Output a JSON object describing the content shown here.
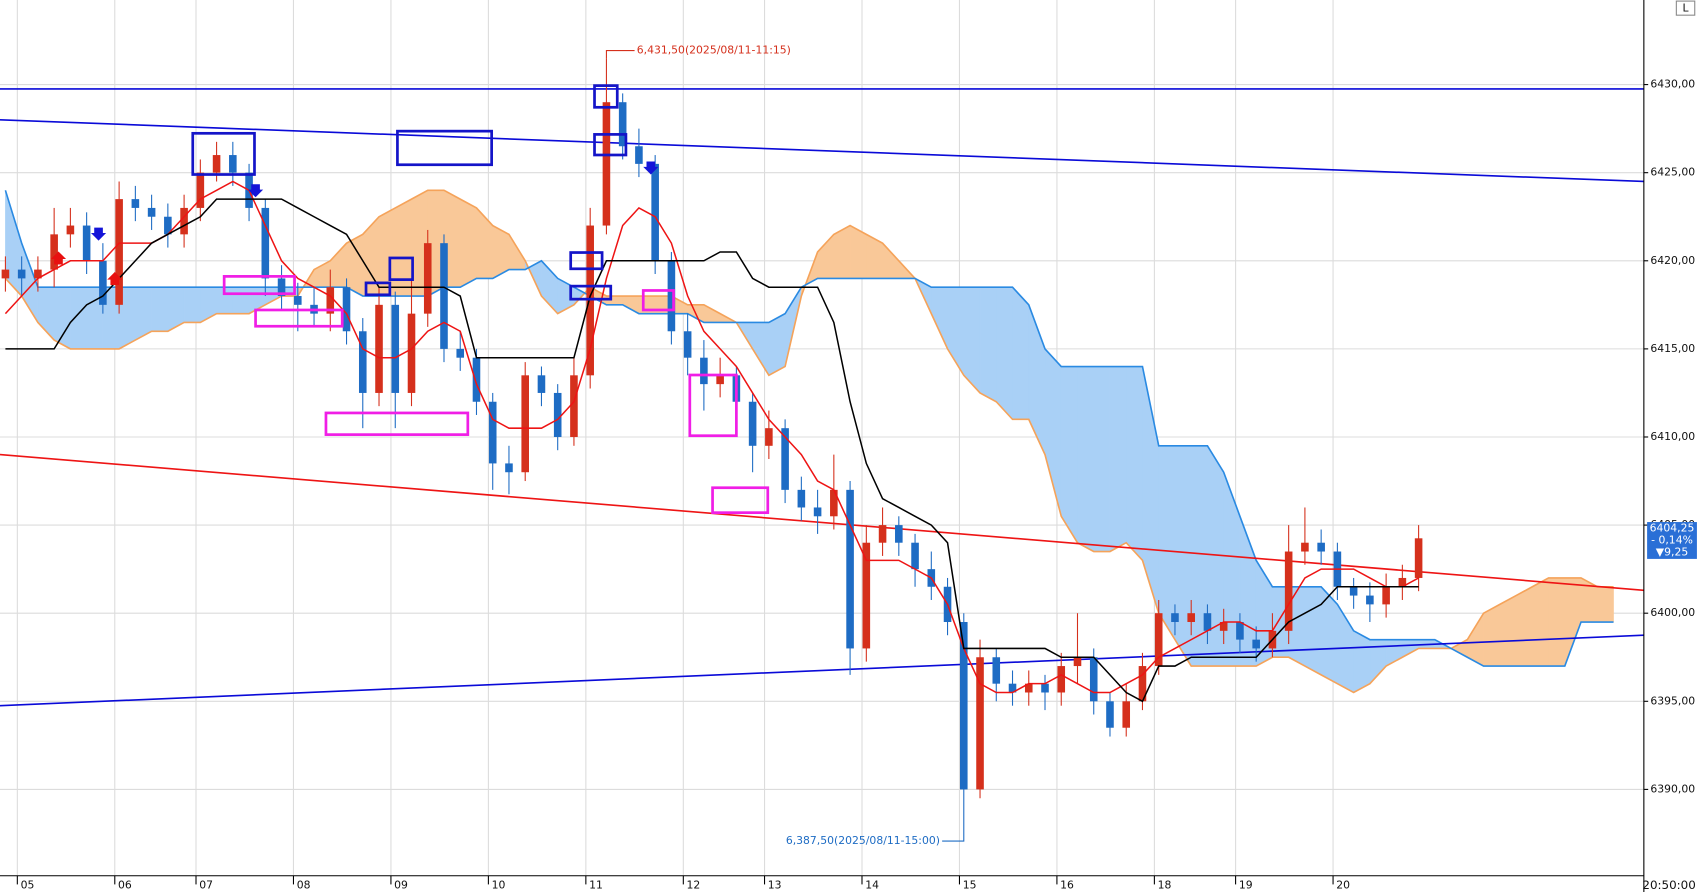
{
  "chart_data": {
    "type": "candlestick",
    "categories": [
      null,
      "05",
      null,
      null,
      null,
      null,
      null,
      "06",
      null,
      null,
      null,
      null,
      "07",
      null,
      null,
      null,
      null,
      null,
      "08",
      null,
      null,
      null,
      null,
      null,
      "09",
      null,
      null,
      null,
      null,
      null,
      "10",
      null,
      null,
      null,
      null,
      null,
      "11",
      null,
      null,
      null,
      null,
      null,
      "12",
      null,
      null,
      null,
      null,
      "13",
      null,
      null,
      null,
      null,
      null,
      "14",
      null,
      null,
      null,
      null,
      null,
      "15",
      null,
      null,
      null,
      null,
      null,
      "16",
      null,
      null,
      null,
      null,
      null,
      "18",
      null,
      null,
      null,
      null,
      "19",
      null,
      null,
      null,
      null,
      null,
      "20",
      null,
      null,
      null,
      null,
      null,
      null,
      null,
      null,
      null,
      null,
      null,
      null,
      null,
      null,
      null,
      null,
      null
    ],
    "candles": {
      "up_color": "#d5301c",
      "down_color": "#1e6cc4",
      "open": [
        6419,
        6419.5,
        6419,
        6419.5,
        6421.5,
        6422,
        6420,
        6417.5,
        6423.5,
        6423,
        6422.5,
        6421.5,
        6423,
        6425,
        6426,
        6425,
        6423,
        6419,
        6418,
        6417.5,
        6417,
        6418.5,
        6416,
        6412.5,
        6417.5,
        6412.5,
        6417,
        6421,
        6415,
        6414.5,
        6412,
        6408.5,
        6408,
        6413.5,
        6412.5,
        6410,
        6413.5,
        6422,
        6429,
        6426.5,
        6425.5,
        6420,
        6416,
        6414.5,
        6413,
        6413.5,
        6412,
        6409.5,
        6410.5,
        6407,
        6406,
        6405.5,
        6407,
        6398,
        6404,
        6405,
        6404,
        6402.5,
        6401.5,
        6399.5,
        6390,
        6397.5,
        6396,
        6395.5,
        6396,
        6395.5,
        6397,
        6397.5,
        6395,
        6393.5,
        6395,
        6397,
        6400,
        6399.5,
        6400,
        6399,
        6399.5,
        6398.5,
        6398,
        6399,
        6403.5,
        6404,
        6403.5,
        6401.5,
        6401,
        6400.5,
        6401.5,
        6402,
        null,
        null,
        null,
        null,
        null,
        null,
        null,
        null,
        null,
        null,
        null,
        null
      ],
      "high": [
        6420.25,
        6420.25,
        6420.25,
        6423,
        6423,
        6422.75,
        6421,
        6424.5,
        6424.25,
        6423.75,
        6423.25,
        6423.75,
        6425.75,
        6426.75,
        6426.75,
        6425.5,
        6423.5,
        6419.75,
        6418.75,
        6418.5,
        6419.5,
        6419,
        6416.75,
        6418.5,
        6418.25,
        6419,
        6421.75,
        6421.5,
        6416,
        6415,
        6412.5,
        6409.5,
        6414.25,
        6414,
        6413,
        6414.5,
        6423,
        6431.5,
        6429.5,
        6427.5,
        6426,
        6420.5,
        6417,
        6415.5,
        6414.5,
        6414,
        6412.5,
        6411.5,
        6411,
        6407.75,
        6407,
        6409,
        6407.5,
        6405,
        6406,
        6405.5,
        6404.5,
        6403.5,
        6402,
        6400,
        6398.5,
        6398,
        6396.75,
        6396.75,
        6396.5,
        6397.75,
        6400,
        6398,
        6395.5,
        6396,
        6397.75,
        6400.75,
        6400.5,
        6400.75,
        6400.5,
        6400.25,
        6400,
        6399.25,
        6400,
        6405,
        6406,
        6404.75,
        6404,
        6402,
        6401.75,
        6402.25,
        6402.75,
        6405,
        null,
        null,
        null,
        null,
        null,
        null,
        null,
        null,
        null,
        null,
        null,
        null
      ],
      "low": [
        6418.25,
        6418,
        6418.25,
        6418.5,
        6420.75,
        6419.25,
        6417,
        6417,
        6422.25,
        6421.75,
        6420.75,
        6420.75,
        6422.25,
        6424.5,
        6424.25,
        6422.25,
        6418,
        6417.25,
        6416,
        6416.25,
        6416,
        6415.25,
        6410.5,
        6411.75,
        6410.5,
        6411.75,
        6416.25,
        6414.25,
        6413.75,
        6411.25,
        6407,
        6406.75,
        6407.5,
        6411.75,
        6409.25,
        6409.5,
        6412.75,
        6421.5,
        6425.75,
        6424.75,
        6419.25,
        6415.25,
        6413.5,
        6411.5,
        6412.25,
        6411.25,
        6408,
        6408.75,
        6406.25,
        6405.25,
        6404.5,
        6404.75,
        6396.5,
        6397.25,
        6403.25,
        6403.25,
        6401.5,
        6400.75,
        6398.75,
        6387.5,
        6389.5,
        6395,
        6394.75,
        6394.75,
        6394.5,
        6394.75,
        6396,
        6394.25,
        6393,
        6393,
        6394.5,
        6396.5,
        6398.75,
        6398.75,
        6398.25,
        6398.25,
        6397.75,
        6397.25,
        6397.5,
        6398.25,
        6402.75,
        6402.75,
        6400.75,
        6400.25,
        6399.5,
        6399.75,
        6400.75,
        6401.25,
        null,
        null,
        null,
        null,
        null,
        null,
        null,
        null,
        null,
        null,
        null,
        null
      ],
      "close": [
        6419.5,
        6419,
        6419.5,
        6421.5,
        6422,
        6420,
        6417.5,
        6423.5,
        6423,
        6422.5,
        6421.5,
        6423,
        6425,
        6426,
        6425,
        6423,
        6419,
        6418,
        6417.5,
        6417,
        6418.5,
        6416,
        6412.5,
        6417.5,
        6412.5,
        6417,
        6421,
        6415,
        6414.5,
        6412,
        6408.5,
        6408,
        6413.5,
        6412.5,
        6410,
        6413.5,
        6422,
        6429,
        6426.5,
        6425.5,
        6420,
        6416,
        6414.5,
        6413,
        6413.5,
        6412,
        6409.5,
        6410.5,
        6407,
        6406,
        6405.5,
        6407,
        6398,
        6404,
        6405,
        6404,
        6402.5,
        6401.5,
        6399.5,
        6390,
        6397.5,
        6396,
        6395.5,
        6396,
        6395.5,
        6397,
        6397.5,
        6395,
        6393.5,
        6395,
        6397,
        6400,
        6399.5,
        6400,
        6399,
        6399.5,
        6398.5,
        6398,
        6399,
        6403.5,
        6404,
        6403.5,
        6401.5,
        6401,
        6400.5,
        6401.5,
        6402,
        6404.25,
        null,
        null,
        null,
        null,
        null,
        null,
        null,
        null,
        null,
        null,
        null,
        null
      ]
    },
    "series": [
      {
        "color": "#ee1414",
        "values": [
          6417,
          6418,
          6419,
          6419.5,
          6420,
          6420,
          6420,
          6421,
          6421,
          6421,
          6421.5,
          6422.5,
          6423.5,
          6424,
          6424.5,
          6424,
          6422,
          6420,
          6419,
          6418.5,
          6418,
          6417,
          6415,
          6414.5,
          6414.5,
          6415,
          6416,
          6416.5,
          6416,
          6413,
          6411,
          6410.5,
          6410.5,
          6410.5,
          6411,
          6412,
          6415,
          6419,
          6422,
          6423,
          6422.5,
          6421,
          6418,
          6416,
          6415,
          6414,
          6412.5,
          6411,
          6410,
          6409,
          6407.5,
          6407,
          6405,
          6403,
          6403,
          6403,
          6402.5,
          6402,
          6400.5,
          6398,
          6396,
          6395.5,
          6395.5,
          6396,
          6396,
          6396.5,
          6396,
          6395.5,
          6395.5,
          6396,
          6396.5,
          6397.5,
          6398,
          6398.5,
          6399,
          6399.5,
          6399.5,
          6399,
          6399,
          6400.5,
          6402,
          6402.5,
          6402.5,
          6402.5,
          6402,
          6401.5,
          6401.5,
          6402,
          null,
          null,
          null,
          null,
          null,
          null,
          null,
          null,
          null,
          null,
          null,
          null
        ]
      },
      {
        "color": "#000000",
        "values": [
          6415,
          6415,
          6415,
          6415,
          6416.5,
          6417.5,
          6418,
          6419,
          6420,
          6421,
          6421.5,
          6422,
          6422.5,
          6423.5,
          6423.5,
          6423.5,
          6423.5,
          6423.5,
          6423,
          6422.5,
          6422,
          6421.5,
          6420,
          6418.5,
          6418.5,
          6418.5,
          6418.5,
          6418.5,
          6418,
          6414.5,
          6414.5,
          6414.5,
          6414.5,
          6414.5,
          6414.5,
          6414.5,
          6418,
          6420,
          6420,
          6420,
          6420,
          6420,
          6420,
          6420,
          6420.5,
          6420.5,
          6419,
          6418.5,
          6418.5,
          6418.5,
          6418.5,
          6416.5,
          6412,
          6408.5,
          6406.5,
          6406,
          6405.5,
          6405,
          6404,
          6398,
          6398,
          6398,
          6398,
          6398,
          6398,
          6397.5,
          6397.5,
          6397.5,
          6396.5,
          6395.5,
          6395,
          6397,
          6397,
          6397.5,
          6397.5,
          6397.5,
          6397.5,
          6397.5,
          6398.5,
          6399.5,
          6400,
          6400.5,
          6401.5,
          6401.5,
          6401.5,
          6401.5,
          6401.5,
          6401.5,
          null,
          null,
          null,
          null,
          null,
          null,
          null,
          null,
          null,
          null,
          null,
          null
        ]
      }
    ],
    "cloud": {
      "a": {
        "color": "#f5a35a",
        "fill": "#f9c898",
        "values": [
          6419,
          6418,
          6416.5,
          6415.5,
          6415,
          6415,
          6415,
          6415,
          6415.5,
          6416,
          6416,
          6416.5,
          6416.5,
          6417,
          6417,
          6417,
          6417.5,
          6418,
          6418,
          6419.5,
          6420,
          6421,
          6421.5,
          6422.5,
          6423,
          6423.5,
          6424,
          6424,
          6423.5,
          6423,
          6422,
          6421.5,
          6420,
          6418,
          6417,
          6417.5,
          6418.5,
          6418,
          6418,
          6418,
          6418,
          6418,
          6417.5,
          6417.5,
          6417,
          6416.5,
          6415,
          6413.5,
          6414,
          6418,
          6420.5,
          6421.5,
          6422,
          6421.5,
          6421,
          6420,
          6419,
          6417,
          6415,
          6413.5,
          6412.5,
          6412,
          6411,
          6411,
          6409,
          6405.5,
          6404,
          6403.5,
          6403.5,
          6404,
          6403,
          6400,
          6398.5,
          6397,
          6397,
          6397,
          6397,
          6397,
          6397.5,
          6397.5,
          6397,
          6396.5,
          6396,
          6395.5,
          6396,
          6397,
          6397.5,
          6398,
          6398,
          6398,
          6398.5,
          6400,
          6400.5,
          6401,
          6401.5,
          6402,
          6402,
          6402,
          6401.5,
          6401.5
        ]
      },
      "b": {
        "color": "#2a8ae2",
        "fill": "#a9d0f6",
        "values": [
          6424,
          6421,
          6418.5,
          6418.5,
          6418.5,
          6418.5,
          6418.5,
          6418.5,
          6418.5,
          6418.5,
          6418.5,
          6418.5,
          6418.5,
          6418.5,
          6418.5,
          6418.5,
          6418.5,
          6418.5,
          6418.5,
          6418.5,
          6418.5,
          6418.5,
          6418,
          6418,
          6418,
          6418,
          6418,
          6418.5,
          6418.5,
          6419,
          6419,
          6419.5,
          6419.5,
          6420,
          6419,
          6418.5,
          6418,
          6417.5,
          6417.5,
          6417,
          6417,
          6417,
          6417,
          6416.5,
          6416.5,
          6416.5,
          6416.5,
          6416.5,
          6417,
          6418.5,
          6419,
          6419,
          6419,
          6419,
          6419,
          6419,
          6419,
          6418.5,
          6418.5,
          6418.5,
          6418.5,
          6418.5,
          6418.5,
          6417.5,
          6415,
          6414,
          6414,
          6414,
          6414,
          6414,
          6414,
          6409.5,
          6409.5,
          6409.5,
          6409.5,
          6408,
          6405.5,
          6403,
          6401.5,
          6401.5,
          6401.5,
          6401.5,
          6400.5,
          6399,
          6398.5,
          6398.5,
          6398.5,
          6398.5,
          6398.5,
          6398,
          6397.5,
          6397,
          6397,
          6397,
          6397,
          6397,
          6397,
          6399.5,
          6399.5,
          6399.5
        ]
      }
    },
    "trend_lines": [
      {
        "color": "#0a0ad8",
        "values": [
          6429.75,
          6429.75
        ]
      },
      {
        "color": "#0a0ad8",
        "values": [
          6428,
          6424.5
        ]
      },
      {
        "color": "#ee1414",
        "values": [
          6409,
          6401.3
        ]
      },
      {
        "color": "#0a0ad8",
        "values": [
          6394.75,
          6398.75
        ]
      }
    ],
    "ylim": [
      6385.1,
      6434.8
    ],
    "yticks": [
      {
        "value": 6390,
        "label": "6390,00"
      },
      {
        "value": 6395,
        "label": "6395,00"
      },
      {
        "value": 6400,
        "label": "6400,00"
      },
      {
        "value": 6405,
        "label": "6405,00"
      },
      {
        "value": 6410,
        "label": "6410,00"
      },
      {
        "value": 6415,
        "label": "6415,00"
      },
      {
        "value": 6420,
        "label": "6420,00"
      },
      {
        "value": 6425,
        "label": "6425,00"
      },
      {
        "value": 6430,
        "label": "6430,00"
      }
    ],
    "grid": true,
    "high_annotation": {
      "value": 6431.5,
      "label": "6,431,50(2025/08/11-11:15)",
      "color": "#d5301c"
    },
    "low_annotation": {
      "value": 6387.5,
      "label": "6,387,50(2025/08/11-15:00)",
      "color": "#1e6cc4"
    },
    "last_price": {
      "value": 6404.25,
      "label": "6404,25",
      "change_pct": "- 0,14%",
      "change": "▼9,25",
      "color": "#2a6fd6"
    },
    "time_label": "20:50:00",
    "corner_label": "L"
  }
}
